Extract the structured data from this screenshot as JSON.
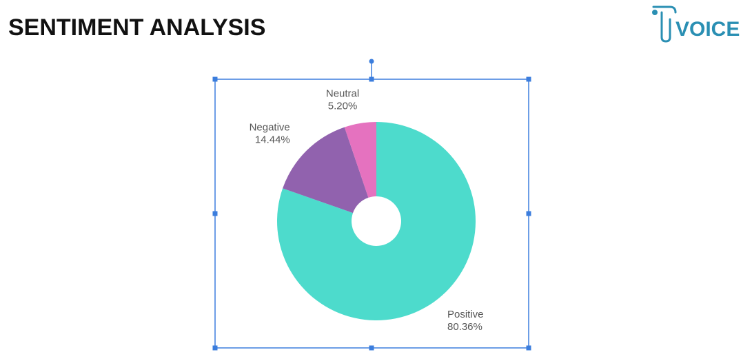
{
  "header": {
    "title": "SENTIMENT ANALYSIS",
    "logo": "VOICE"
  },
  "chart_data": {
    "type": "pie",
    "categories": [
      "Positive",
      "Negative",
      "Neutral"
    ],
    "values": [
      80.36,
      14.44,
      5.2
    ],
    "value_labels": [
      "80.36%",
      "14.44%",
      "5.20%"
    ],
    "colors": [
      "#4ddbcc",
      "#9162ae",
      "#e572bf"
    ]
  }
}
